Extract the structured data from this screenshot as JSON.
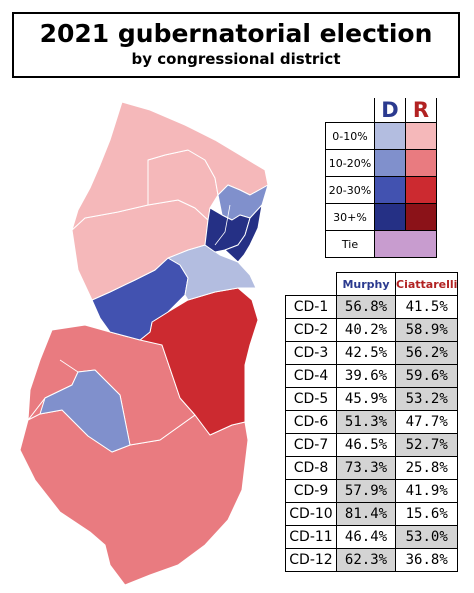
{
  "title": "2021 gubernatorial election",
  "subtitle": "by congressional district",
  "legend": {
    "party_d": "D",
    "party_r": "R",
    "party_d_color": "#2b3a8f",
    "party_r_color": "#b22222",
    "rows": [
      {
        "label": "0-10%",
        "d_color": "#b3bde0",
        "r_color": "#f5b8ba"
      },
      {
        "label": "10-20%",
        "d_color": "#8090cc",
        "r_color": "#e97b80"
      },
      {
        "label": "20-30%",
        "d_color": "#4252b0",
        "r_color": "#cc2a30"
      },
      {
        "label": "30+%",
        "d_color": "#253085",
        "r_color": "#8b1218"
      }
    ],
    "tie": {
      "label": "Tie",
      "color": "#c89ccf"
    }
  },
  "results": {
    "header_murphy": "Murphy",
    "header_ciattarelli": "Ciattarelli",
    "murphy_color": "#2b3a8f",
    "ciattarelli_color": "#b22222",
    "rows": [
      {
        "district": "CD-1",
        "murphy": "56.8%",
        "ciattarelli": "41.5%",
        "winner": "D"
      },
      {
        "district": "CD-2",
        "murphy": "40.2%",
        "ciattarelli": "58.9%",
        "winner": "R"
      },
      {
        "district": "CD-3",
        "murphy": "42.5%",
        "ciattarelli": "56.2%",
        "winner": "R"
      },
      {
        "district": "CD-4",
        "murphy": "39.6%",
        "ciattarelli": "59.6%",
        "winner": "R"
      },
      {
        "district": "CD-5",
        "murphy": "45.9%",
        "ciattarelli": "53.2%",
        "winner": "R"
      },
      {
        "district": "CD-6",
        "murphy": "51.3%",
        "ciattarelli": "47.7%",
        "winner": "D"
      },
      {
        "district": "CD-7",
        "murphy": "46.5%",
        "ciattarelli": "52.7%",
        "winner": "R"
      },
      {
        "district": "CD-8",
        "murphy": "73.3%",
        "ciattarelli": "25.8%",
        "winner": "D"
      },
      {
        "district": "CD-9",
        "murphy": "57.9%",
        "ciattarelli": "41.9%",
        "winner": "D"
      },
      {
        "district": "CD-10",
        "murphy": "81.4%",
        "ciattarelli": "15.6%",
        "winner": "D"
      },
      {
        "district": "CD-11",
        "murphy": "46.4%",
        "ciattarelli": "53.0%",
        "winner": "R"
      },
      {
        "district": "CD-12",
        "murphy": "62.3%",
        "ciattarelli": "36.8%",
        "winner": "D"
      }
    ]
  },
  "map_regions": {
    "cd5": "#f5b8ba",
    "cd11": "#f5b8ba",
    "cd7": "#f5b8ba",
    "cd9": "#8090cc",
    "cd8": "#253085",
    "cd10": "#253085",
    "cd6": "#b3bde0",
    "cd12": "#4252b0",
    "cd4": "#cc2a30",
    "cd3": "#e97b80",
    "cd2": "#e97b80",
    "cd1": "#8090cc"
  }
}
